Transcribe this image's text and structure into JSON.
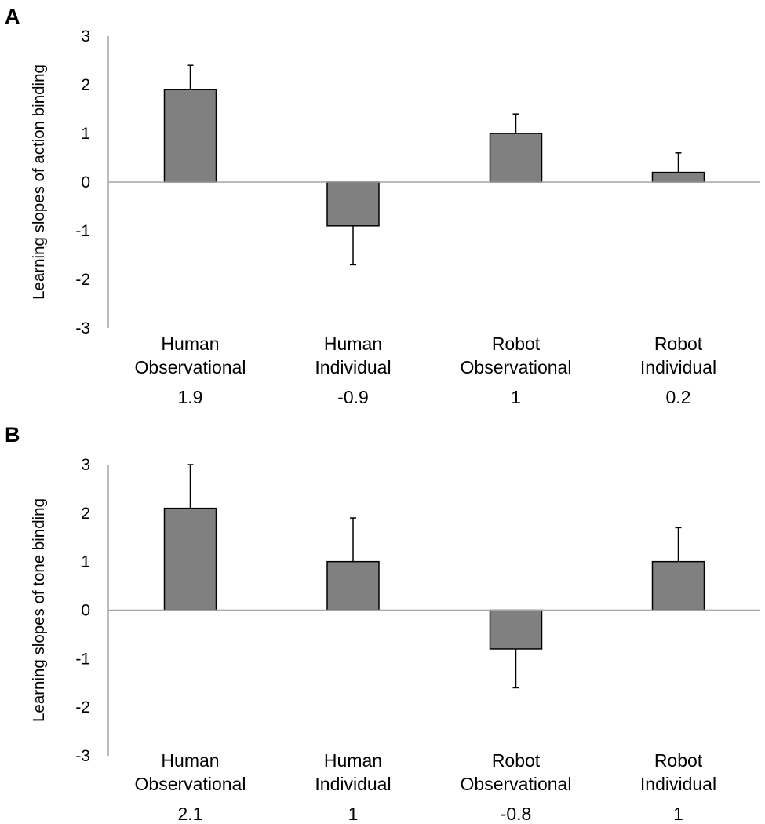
{
  "colors": {
    "bar_fill": "#808080",
    "bar_stroke": "#000000",
    "axis": "#a6a6a6",
    "text": "#000000",
    "background": "#ffffff"
  },
  "chart_data": [
    {
      "panel": "A",
      "type": "bar",
      "title": "",
      "xlabel": "",
      "ylabel": "Learning slopes of action binding",
      "ylim": [
        -3,
        3
      ],
      "yticks": [
        "3",
        "2",
        "1",
        "0",
        "-1",
        "-2",
        "-3"
      ],
      "categories": [
        {
          "line1": "Human",
          "line2": "Observational"
        },
        {
          "line1": "Human",
          "line2": "Individual"
        },
        {
          "line1": "Robot",
          "line2": "Observational"
        },
        {
          "line1": "Robot",
          "line2": "Individual"
        }
      ],
      "values": [
        1.9,
        -0.9,
        1.0,
        0.2
      ],
      "errors": [
        0.5,
        0.8,
        0.4,
        0.4
      ],
      "value_labels": [
        "1.9",
        "-0.9",
        "1",
        "0.2"
      ]
    },
    {
      "panel": "B",
      "type": "bar",
      "title": "",
      "xlabel": "",
      "ylabel": "Learning slopes of tone binding",
      "ylim": [
        -3,
        3
      ],
      "yticks": [
        "3",
        "2",
        "1",
        "0",
        "-1",
        "-2",
        "-3"
      ],
      "categories": [
        {
          "line1": "Human",
          "line2": "Observational"
        },
        {
          "line1": "Human",
          "line2": "Individual"
        },
        {
          "line1": "Robot",
          "line2": "Observational"
        },
        {
          "line1": "Robot",
          "line2": "Individual"
        }
      ],
      "values": [
        2.1,
        1.0,
        -0.8,
        1.0
      ],
      "errors": [
        0.9,
        0.9,
        0.8,
        0.7
      ],
      "value_labels": [
        "2.1",
        "1",
        "-0.8",
        "1"
      ]
    }
  ]
}
